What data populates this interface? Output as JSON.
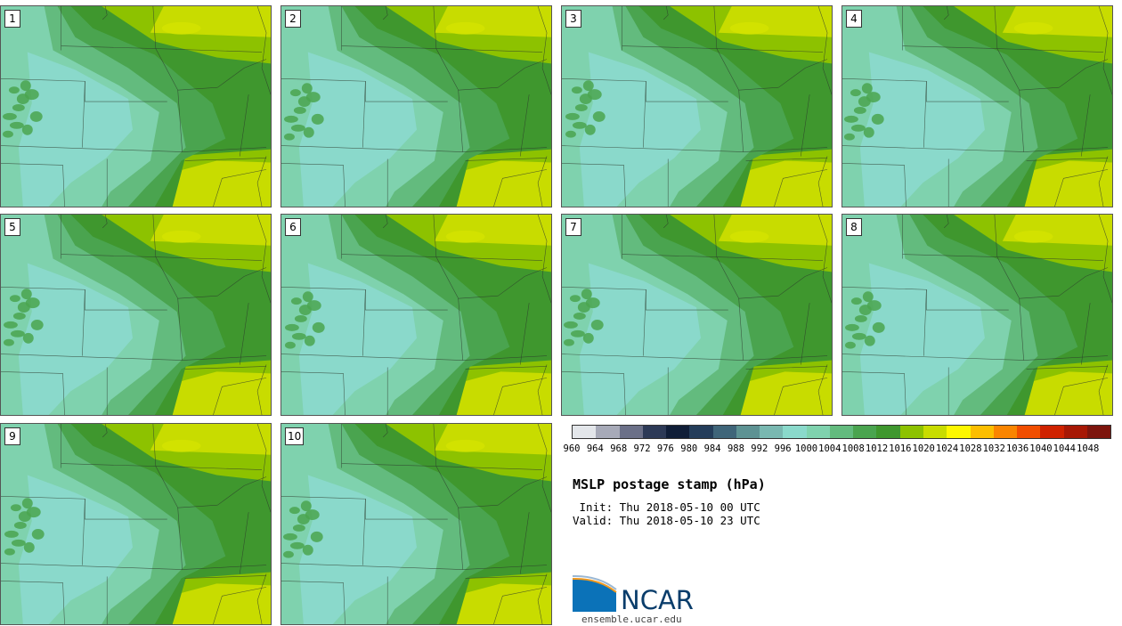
{
  "panels": [
    {
      "label": "1"
    },
    {
      "label": "2"
    },
    {
      "label": "3"
    },
    {
      "label": "4"
    },
    {
      "label": "5"
    },
    {
      "label": "6"
    },
    {
      "label": "7"
    },
    {
      "label": "8"
    },
    {
      "label": "9"
    },
    {
      "label": "10"
    }
  ],
  "colorbar": {
    "colors": [
      "#e3e6ea",
      "#a7aab8",
      "#6b7088",
      "#2d3a57",
      "#101e38",
      "#243d5a",
      "#3f6579",
      "#5d9293",
      "#79b8b1",
      "#8ad9cb",
      "#7fd2ae",
      "#63bb7e",
      "#4aa44f",
      "#3f972e",
      "#8dc200",
      "#c8dc00",
      "#fdf700",
      "#fcbe00",
      "#fa8500",
      "#f14e00",
      "#cf2200",
      "#a71805",
      "#7d150d"
    ],
    "ticks": [
      "960",
      "964",
      "968",
      "972",
      "976",
      "980",
      "984",
      "988",
      "992",
      "996",
      "1000",
      "1004",
      "1008",
      "1012",
      "1016",
      "1020",
      "1024",
      "1028",
      "1032",
      "1036",
      "1040",
      "1044",
      "1048"
    ]
  },
  "title": "MSLP postage stamp (hPa)",
  "init": " Init: Thu 2018-05-10 00 UTC",
  "valid": "Valid: Thu 2018-05-10 23 UTC",
  "logo": {
    "text": "NCAR",
    "website": "ensemble.ucar.edu"
  },
  "palette": {
    "c1000": "#8ad9cb",
    "c1004": "#7fd2ae",
    "c1008": "#63bb7e",
    "c1012": "#4aa44f",
    "c1016": "#3f972e",
    "c1020": "#8dc200",
    "c1024": "#c8dc00"
  }
}
